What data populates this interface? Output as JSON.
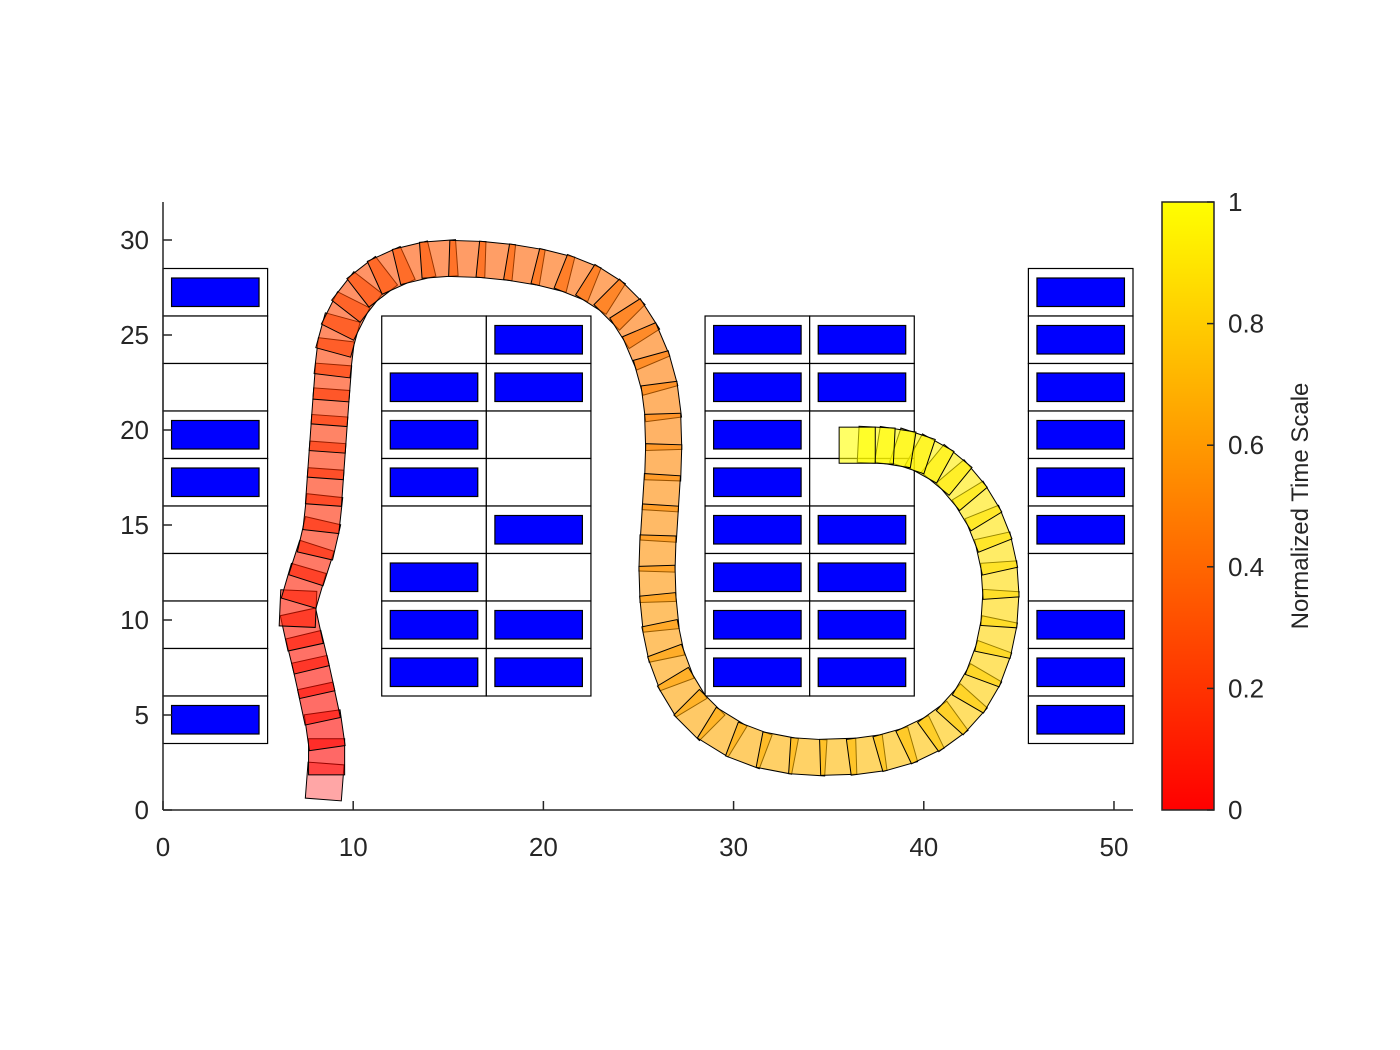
{
  "chart_data": {
    "type": "scatter",
    "title": "",
    "xlabel": "",
    "ylabel": "",
    "xlim": [
      0,
      51
    ],
    "ylim": [
      0,
      32
    ],
    "xticks": [
      "0",
      "10",
      "20",
      "30",
      "40",
      "50"
    ],
    "yticks": [
      "0",
      "5",
      "10",
      "15",
      "20",
      "25",
      "30"
    ],
    "grid": false,
    "colors": {
      "occupied_spot": "#0000ff",
      "spot_outline": "#000000",
      "cmap_start": "#ff0000",
      "cmap_end": "#ffff00"
    },
    "colorbar": {
      "label": "Normalized Time Scale",
      "range": [
        0,
        1
      ],
      "ticks": [
        "0",
        "0.2",
        "0.4",
        "0.6",
        "0.8",
        "1"
      ]
    },
    "parking_blocks": [
      {
        "x": [
          0,
          5.5
        ],
        "y_top": 28.5,
        "rows": 10,
        "cols": 1,
        "occupied": [
          [
            1
          ],
          [
            0
          ],
          [
            0
          ],
          [
            1
          ],
          [
            1
          ],
          [
            0
          ],
          [
            0
          ],
          [
            0
          ],
          [
            0
          ],
          [
            1
          ]
        ]
      },
      {
        "x": [
          11.5,
          22.5
        ],
        "y_top": 26,
        "rows": 8,
        "cols": 2,
        "occupied": [
          [
            0,
            1
          ],
          [
            1,
            1
          ],
          [
            1,
            0
          ],
          [
            1,
            0
          ],
          [
            0,
            1
          ],
          [
            1,
            0
          ],
          [
            1,
            1
          ],
          [
            1,
            1
          ]
        ]
      },
      {
        "x": [
          28.5,
          39.5
        ],
        "y_top": 26,
        "rows": 8,
        "cols": 2,
        "occupied": [
          [
            1,
            1
          ],
          [
            1,
            1
          ],
          [
            1,
            0
          ],
          [
            1,
            0
          ],
          [
            1,
            1
          ],
          [
            1,
            1
          ],
          [
            1,
            1
          ],
          [
            1,
            1
          ]
        ]
      },
      {
        "x": [
          45.5,
          51
        ],
        "y_top": 28.5,
        "rows": 10,
        "cols": 1,
        "occupied": [
          [
            1
          ],
          [
            1
          ],
          [
            1
          ],
          [
            1
          ],
          [
            1
          ],
          [
            1
          ],
          [
            0
          ],
          [
            1
          ],
          [
            1
          ],
          [
            1
          ]
        ]
      }
    ],
    "trajectory": {
      "x": [
        8.5,
        8.6,
        8.5,
        8.2,
        7.9,
        7.6,
        7.3,
        7.1,
        7.4,
        7.8,
        8.2,
        8.4,
        8.5,
        8.6,
        8.7,
        8.8,
        8.9,
        9.0,
        9.2,
        9.6,
        10.2,
        11.0,
        12.0,
        13.2,
        14.5,
        16.0,
        17.5,
        19.0,
        20.5,
        21.8,
        23.0,
        24.0,
        24.8,
        25.4,
        25.9,
        26.2,
        26.3,
        26.3,
        26.2,
        26.1,
        26.0,
        26.0,
        26.1,
        26.3,
        26.7,
        27.3,
        28.2,
        29.4,
        30.8,
        32.3,
        33.9,
        35.5,
        37.0,
        38.5,
        39.8,
        41.0,
        42.0,
        42.8,
        43.4,
        43.8,
        44.0,
        44.0,
        43.8,
        43.4,
        42.8,
        42.0,
        41.2,
        40.3,
        39.4,
        38.5,
        37.5,
        36.5
      ],
      "y": [
        1.5,
        2.8,
        4.2,
        5.6,
        7.0,
        8.3,
        9.5,
        10.6,
        11.8,
        13.0,
        14.3,
        15.6,
        17.0,
        18.4,
        19.8,
        21.2,
        22.5,
        23.8,
        25.0,
        26.0,
        27.0,
        27.8,
        28.4,
        28.8,
        29.0,
        29.0,
        28.9,
        28.7,
        28.4,
        28.0,
        27.4,
        26.6,
        25.6,
        24.4,
        23.0,
        21.5,
        19.9,
        18.3,
        16.7,
        15.1,
        13.5,
        11.9,
        10.4,
        8.9,
        7.5,
        6.2,
        5.0,
        4.1,
        3.4,
        3.0,
        2.8,
        2.8,
        2.9,
        3.2,
        3.7,
        4.4,
        5.3,
        6.4,
        7.7,
        9.1,
        10.6,
        12.1,
        13.5,
        14.8,
        16.0,
        17.1,
        17.9,
        18.5,
        18.9,
        19.1,
        19.2,
        19.2
      ],
      "t": "normalized 0 → 1 along path"
    }
  }
}
